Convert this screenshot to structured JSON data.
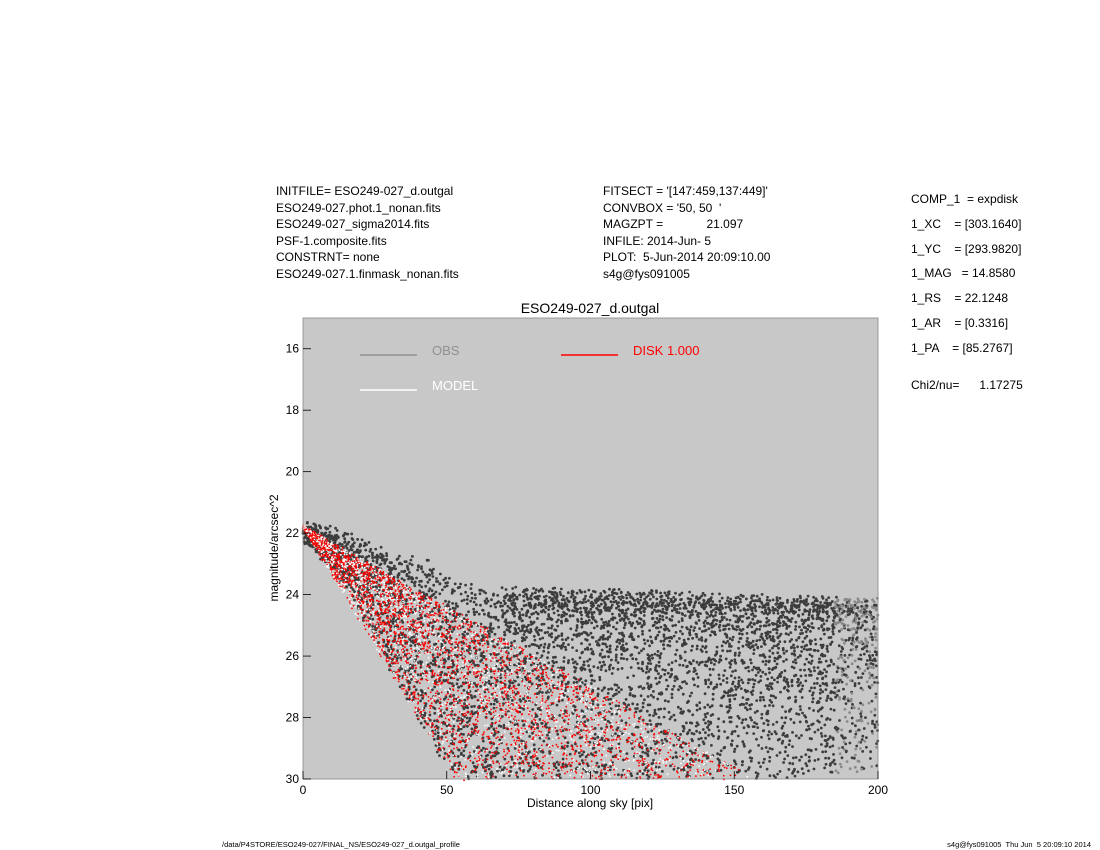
{
  "header": {
    "left_block": [
      "INITFILE= ESO249-027_d.outgal",
      "ESO249-027.phot.1_nonan.fits",
      "ESO249-027_sigma2014.fits",
      "PSF-1.composite.fits",
      "CONSTRNT= none",
      "ESO249-027.1.finmask_nonan.fits"
    ],
    "middle_block": [
      "FITSECT = '[147:459,137:449]'",
      "CONVBOX = '50, 50  '",
      "MAGZPT =             21.097",
      "INFILE: 2014-Jun- 5",
      "PLOT:  5-Jun-2014 20:09:10.00",
      "s4g@fys091005"
    ]
  },
  "components": [
    "COMP_1  = expdisk",
    "1_XC    = [303.1640]",
    "1_YC    = [293.9820]",
    "1_MAG   = 14.8580",
    "1_RS    = 22.1248",
    "1_AR    = [0.3316]",
    "1_PA    = [85.2767]"
  ],
  "chi2": "Chi2/nu=      1.17275",
  "footer": {
    "left": "/data/P4STORE/ESO249-027/FINAL_NS/ESO249-027_d.outgal_profile",
    "right": "s4g@fys091005  Thu Jun  5 20:09:10 2014"
  },
  "colors": {
    "plot_bg": "#c8c8c8",
    "obs": "#3c3c3c",
    "obs_legend": "#909090",
    "model": "#ffffff",
    "disk": "#ff0000"
  },
  "chart_data": {
    "type": "scatter",
    "title": "ESO249-027_d.outgal",
    "xlabel": "Distance along sky [pix]",
    "ylabel": "magnitude/arcsec^2",
    "xlim": [
      0,
      200
    ],
    "ylim": [
      30,
      15
    ],
    "y_inverted": true,
    "xticks": [
      0,
      50,
      100,
      150,
      200
    ],
    "yticks": [
      16,
      18,
      20,
      22,
      24,
      26,
      28,
      30
    ],
    "legend": [
      {
        "name": "OBS",
        "color": "#909090"
      },
      {
        "name": "DISK  1.000",
        "color": "#ff0000"
      },
      {
        "name": "MODEL",
        "color": "#ffffff"
      }
    ],
    "series": [
      {
        "name": "OBS",
        "kind": "scatter",
        "color": "#3c3c3c",
        "upper_envelope": [
          [
            0,
            21.8
          ],
          [
            10,
            22.0
          ],
          [
            20,
            22.3
          ],
          [
            30,
            22.7
          ],
          [
            40,
            22.9
          ],
          [
            50,
            23.5
          ],
          [
            60,
            23.8
          ],
          [
            70,
            24.0
          ],
          [
            80,
            24.0
          ],
          [
            100,
            24.0
          ],
          [
            120,
            24.1
          ],
          [
            150,
            24.2
          ],
          [
            180,
            24.3
          ],
          [
            200,
            24.3
          ]
        ],
        "lower_envelope": [
          [
            0,
            22.2
          ],
          [
            10,
            23.0
          ],
          [
            20,
            24.5
          ],
          [
            30,
            26.3
          ],
          [
            40,
            28.0
          ],
          [
            50,
            29.5
          ],
          [
            60,
            30.0
          ],
          [
            200,
            30.0
          ]
        ]
      },
      {
        "name": "DISK  1.000",
        "kind": "wedge",
        "color": "#ff0000",
        "upper_edge": [
          [
            0,
            21.8
          ],
          [
            158,
            30.0
          ]
        ],
        "lower_edge": [
          [
            0,
            21.8
          ],
          [
            53,
            30.0
          ]
        ]
      }
    ]
  }
}
